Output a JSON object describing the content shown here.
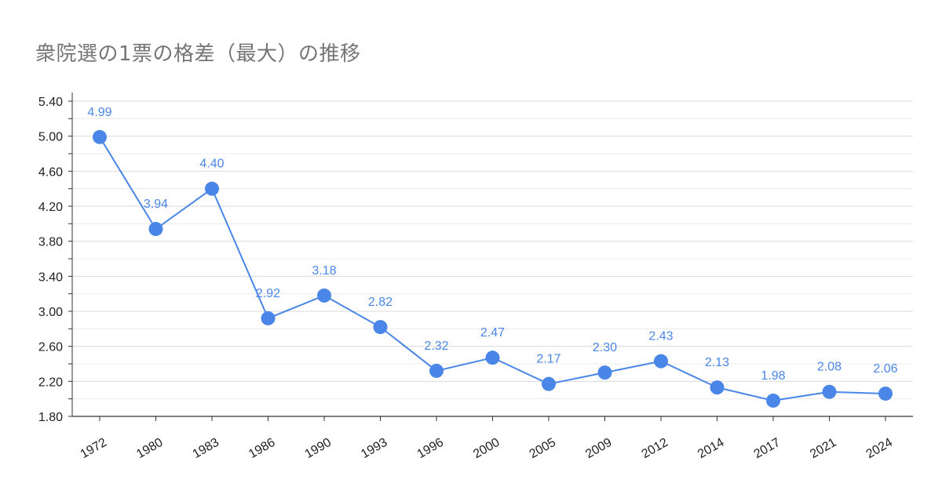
{
  "chart_data": {
    "type": "line",
    "title": "衆院選の1票の格差（最大）の推移",
    "xlabel": "",
    "ylabel": "",
    "categories": [
      "1972",
      "1980",
      "1983",
      "1986",
      "1990",
      "1993",
      "1996",
      "2000",
      "2005",
      "2009",
      "2012",
      "2014",
      "2017",
      "2021",
      "2024"
    ],
    "series": [
      {
        "values": [
          4.99,
          3.94,
          4.4,
          2.92,
          3.18,
          2.82,
          2.32,
          2.47,
          2.17,
          2.3,
          2.43,
          2.13,
          1.98,
          2.08,
          2.06
        ]
      }
    ],
    "data_labels": [
      "4.99",
      "3.94",
      "4.40",
      "2.92",
      "3.18",
      "2.82",
      "2.32",
      "2.47",
      "2.17",
      "2.30",
      "2.43",
      "2.13",
      "1.98",
      "2.08",
      "2.06"
    ],
    "ylim": [
      1.8,
      5.5
    ],
    "yticks": [
      1.8,
      2.2,
      2.6,
      3.0,
      3.4,
      3.8,
      4.2,
      4.6,
      5.0,
      5.4
    ],
    "ytick_labels": [
      "1.80",
      "2.20",
      "2.60",
      "3.00",
      "3.40",
      "3.80",
      "4.20",
      "4.60",
      "5.00",
      "5.40"
    ],
    "grid": true,
    "legend": "none",
    "colors": {
      "series": "#4a86e8",
      "grid": "#d9d9d9",
      "axis": "#333333",
      "title": "#757575"
    }
  }
}
